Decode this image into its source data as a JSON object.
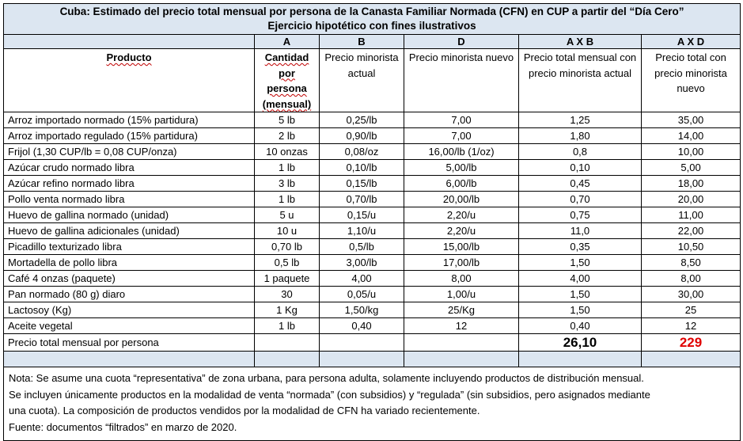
{
  "title_line1": "Cuba: Estimado del precio total mensual por persona de la Canasta Familiar Normada (CFN) en CUP a partir del “Día Cero”",
  "title_line2": "Ejercicio hipotético con fines ilustrativos",
  "column_letters": [
    "A",
    "B",
    "D",
    "A X B",
    "A X D"
  ],
  "headers": {
    "producto": "Producto",
    "cantidad": "Cantidad por persona (mensual)",
    "precio_actual": "Precio minorista actual",
    "precio_nuevo": "Precio minorista nuevo",
    "total_actual": "Precio total mensual con precio minorista actual",
    "total_nuevo": "Precio total con precio minorista nuevo"
  },
  "rows": [
    {
      "producto": "Arroz importado normado (15% partidura)",
      "cantidad": "5 lb",
      "precio_actual": "0,25/lb",
      "precio_nuevo": "7,00",
      "total_actual": "1,25",
      "total_nuevo": "35,00"
    },
    {
      "producto": "Arroz importado regulado (15% partidura)",
      "cantidad": "2 lb",
      "precio_actual": "0,90/lb",
      "precio_nuevo": "7,00",
      "total_actual": "1,80",
      "total_nuevo": "14,00"
    },
    {
      "producto": "Frijol (1,30 CUP/lb = 0,08 CUP/onza)",
      "cantidad": "10 onzas",
      "precio_actual": "0,08/oz",
      "precio_nuevo": "16,00/lb (1/oz)",
      "total_actual": "0,8",
      "total_nuevo": "10,00"
    },
    {
      "producto": "Azúcar crudo normado libra",
      "cantidad": "1 lb",
      "precio_actual": "0,10/lb",
      "precio_nuevo": "5,00/lb",
      "total_actual": "0,10",
      "total_nuevo": "5,00"
    },
    {
      "producto": "Azúcar refino normado libra",
      "cantidad": "3 lb",
      "precio_actual": "0,15/lb",
      "precio_nuevo": "6,00/lb",
      "total_actual": "0,45",
      "total_nuevo": "18,00"
    },
    {
      "producto": "Pollo venta normado libra",
      "cantidad": "1 lb",
      "precio_actual": "0,70/lb",
      "precio_nuevo": "20,00/lb",
      "total_actual": "0,70",
      "total_nuevo": "20,00"
    },
    {
      "producto": "Huevo de gallina normado (unidad)",
      "cantidad": "5 u",
      "precio_actual": "0,15/u",
      "precio_nuevo": "2,20/u",
      "total_actual": "0,75",
      "total_nuevo": "11,00"
    },
    {
      "producto": "Huevo de gallina adicionales (unidad)",
      "cantidad": "10 u",
      "precio_actual": "1,10/u",
      "precio_nuevo": "2,20/u",
      "total_actual": "11,0",
      "total_nuevo": "22,00"
    },
    {
      "producto": "Picadillo texturizado libra",
      "cantidad": "0,70 lb",
      "precio_actual": "0,5/lb",
      "precio_nuevo": "15,00/lb",
      "total_actual": "0,35",
      "total_nuevo": "10,50"
    },
    {
      "producto": "Mortadella de pollo libra",
      "cantidad": "0,5 lb",
      "precio_actual": "3,00/lb",
      "precio_nuevo": "17,00/lb",
      "total_actual": "1,50",
      "total_nuevo": "8,50"
    },
    {
      "producto": "Café 4 onzas (paquete)",
      "cantidad": "1 paquete",
      "precio_actual": "4,00",
      "precio_nuevo": "8,00",
      "total_actual": "4,00",
      "total_nuevo": "8,00"
    },
    {
      "producto": "Pan normado (80 g) diaro",
      "cantidad": "30",
      "precio_actual": "0,05/u",
      "precio_nuevo": "1,00/u",
      "total_actual": "1,50",
      "total_nuevo": "30,00"
    },
    {
      "producto": "Lactosoy (Kg)",
      "cantidad": "1 Kg",
      "precio_actual": "1,50/kg",
      "precio_nuevo": "25/Kg",
      "total_actual": "1,50",
      "total_nuevo": "25"
    },
    {
      "producto": "Aceite vegetal",
      "cantidad": "1 lb",
      "precio_actual": "0,40",
      "precio_nuevo": "12",
      "total_actual": "0,40",
      "total_nuevo": "12"
    }
  ],
  "total_row": {
    "label": "Precio total mensual por persona",
    "total_actual": "26,10",
    "total_nuevo": "229"
  },
  "note_lines": [
    "Nota: Se asume una cuota “representativa” de zona urbana, para persona adulta, solamente incluyendo productos de distribución mensual.",
    "Se incluyen únicamente productos en la modalidad de venta “normada” (con subsidios) y “regulada” (sin subsidios, pero asignados mediante",
    "una cuota). La composición de productos vendidos por la modalidad de CFN ha variado recientemente.",
    "Fuente: documentos “filtrados” en marzo de 2020."
  ],
  "colors": {
    "header_fill": "#dce6f1",
    "highlight_red": "#e00000"
  }
}
